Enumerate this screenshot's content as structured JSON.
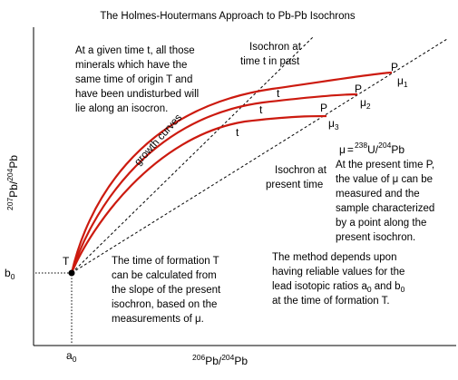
{
  "title": "The Holmes-Houtermans Approach to Pb-Pb Isochrons",
  "notes": {
    "top_left": [
      "At a given time t, all those",
      "minerals which have the",
      "same time of origin T and",
      "have been undisturbed will",
      "lie along an isocron."
    ],
    "isochron_past": [
      "Isochron at",
      "time t in past"
    ],
    "isochron_present": [
      "Isochron at",
      "present time"
    ],
    "mu_formula": {
      "mu": "μ",
      "eq": "=",
      "sup_238": "238",
      "u": "U/",
      "sup_204": "204",
      "pb": "Pb"
    },
    "mu_desc": [
      "At the present time P,",
      "the value of μ can be",
      "measured and the",
      "sample characterized",
      "by a point along the",
      "present isochron."
    ],
    "time_formation": [
      "The time of formation T",
      "can be calculated from",
      "the slope of the present",
      "isochron, based on the",
      "measurements of μ."
    ],
    "method": [
      "The method depends upon",
      "having reliable values for the",
      "lead isotopic ratios  a",
      "at the time of formation T."
    ],
    "method_sub": {
      "a0": "0",
      "and": " and b",
      "b0": "0"
    },
    "growth_curves": "growth curves"
  },
  "labels": {
    "T": "T",
    "P": "P",
    "t": "t",
    "mu": "μ",
    "mu_subs": [
      "1",
      "2",
      "3"
    ],
    "b0_base": "b",
    "b0_sub": "0",
    "a0_base": "a",
    "a0_sub": "0"
  },
  "axes": {
    "x": {
      "sup1": "206",
      "base1": "Pb/",
      "sup2": "204",
      "base2": "Pb"
    },
    "y": {
      "sup1": "207",
      "base1": "Pb/",
      "sup2": "204",
      "base2": "Pb"
    }
  },
  "colors": {
    "curve": "#cc1a0f",
    "ink": "#000000"
  }
}
